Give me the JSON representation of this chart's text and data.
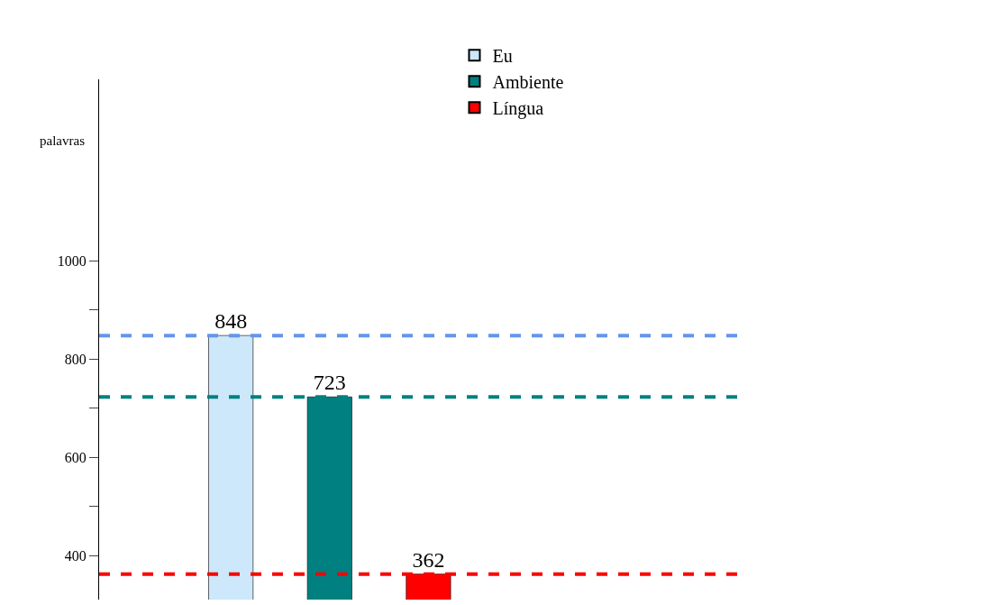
{
  "chart_data": {
    "type": "bar",
    "ylabel": "palavras",
    "categories": [
      null
    ],
    "series": [
      {
        "name": "Eu",
        "color": "#cce8fa",
        "values": [
          848
        ]
      },
      {
        "name": "Ambiente",
        "color": "#008080",
        "values": [
          723
        ]
      },
      {
        "name": "Língua",
        "color": "#ff0000",
        "values": [
          362
        ]
      }
    ],
    "ylim": [
      310,
      1370
    ],
    "yticks": [
      400,
      {
        "value": 500,
        "label": null
      },
      600,
      {
        "value": 700,
        "label": null
      },
      800,
      {
        "value": 900,
        "label": null
      },
      1000
    ],
    "ref_lines": [
      {
        "axis": "y",
        "value": 848,
        "color": "#6495ed",
        "line_style": "dashed"
      },
      {
        "axis": "y",
        "value": 723,
        "color": "#008080",
        "line_style": "dashed"
      },
      {
        "axis": "y",
        "value": 362,
        "color": "#ff0000",
        "line_style": "dashed"
      }
    ],
    "data_labels": true,
    "legend": "top"
  }
}
